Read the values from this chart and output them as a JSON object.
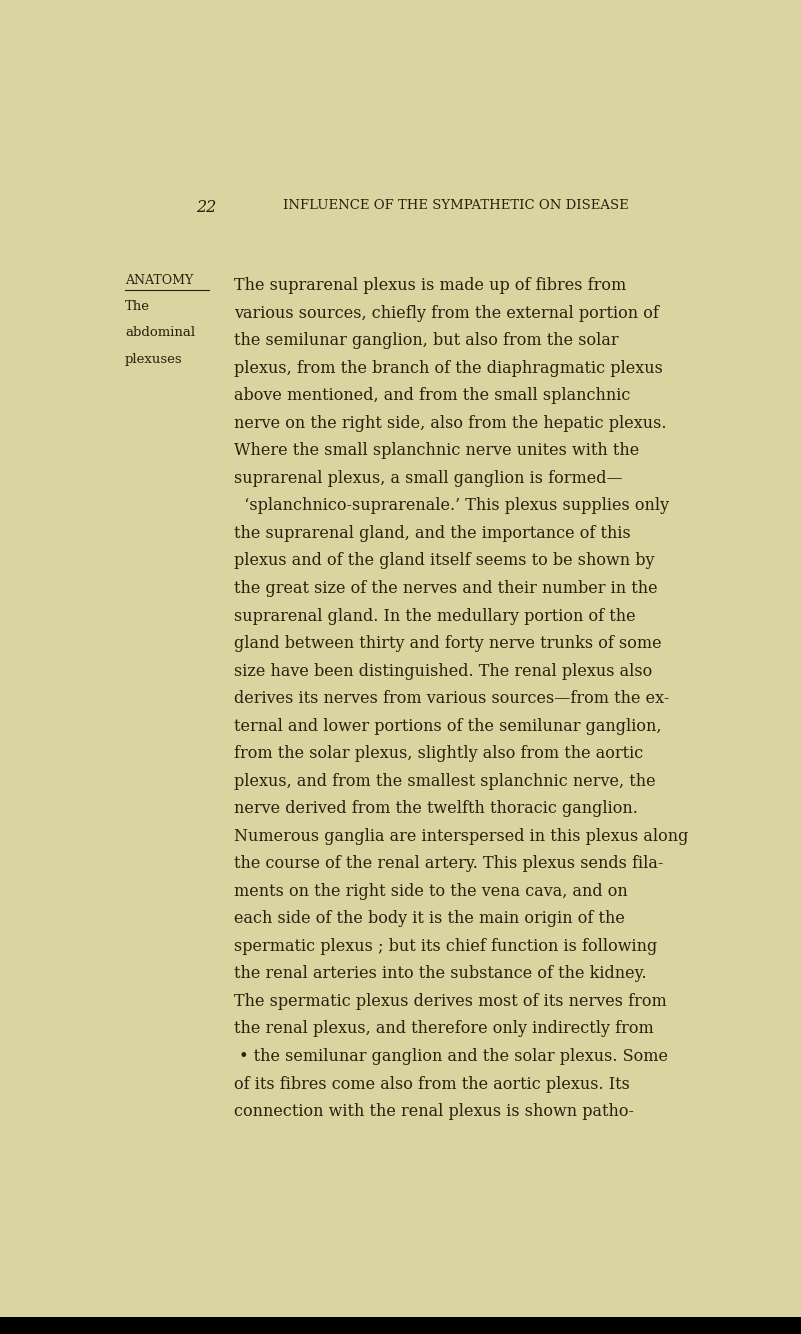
{
  "bg_color": "#d9d4a0",
  "page_number": "22",
  "header_text": "INFLUENCE OF THE SYMPATHETIC ON DISEASE",
  "text_color": "#2c1f0e",
  "header_color": "#2c1f0e",
  "font_size_main": 11.5,
  "font_size_header": 9.5,
  "font_size_pagenum": 11.5,
  "bottom_color": "#000000",
  "anatomy_label": "Anatomy",
  "margin_subtext_line1": "The",
  "margin_subtext_line2": "abdominal",
  "margin_subtext_line3": "plexuses",
  "lines": [
    "The suprarenal plexus is made up of fibres from",
    "various sources, chiefly from the external portion of",
    "the semilunar ganglion, but also from the solar",
    "plexus, from the branch of the diaphragmatic plexus",
    "above mentioned, and from the small splanchnic",
    "nerve on the right side, also from the hepatic plexus.",
    "Where the small splanchnic nerve unites with the",
    "suprarenal plexus, a small ganglion is formed—",
    "  ‘splanchnico-suprarenale.’ This plexus supplies only",
    "the suprarenal gland, and the importance of this",
    "plexus and of the gland itself seems to be shown by",
    "the great size of the nerves and their number in the",
    "suprarenal gland. In the medullary portion of the",
    "gland between thirty and forty nerve trunks of some",
    "size have been distinguished. The renal plexus also",
    "derives its nerves from various sources—from the ex-",
    "ternal and lower portions of the semilunar ganglion,",
    "from the solar plexus, slightly also from the aortic",
    "plexus, and from the smallest splanchnic nerve, the",
    "nerve derived from the twelfth thoracic ganglion.",
    "Numerous ganglia are interspersed in this plexus along",
    "the course of the renal artery. This plexus sends fila-",
    "ments on the right side to the vena cava, and on",
    "each side of the body it is the main origin of the",
    "spermatic plexus ; but its chief function is following",
    "the renal arteries into the substance of the kidney.",
    "The spermatic plexus derives most of its nerves from",
    "the renal plexus, and therefore only indirectly from",
    " • the semilunar ganglion and the solar plexus. Some",
    "of its fibres come also from the aortic plexus. Its",
    "connection with the renal plexus is shown patho-"
  ]
}
